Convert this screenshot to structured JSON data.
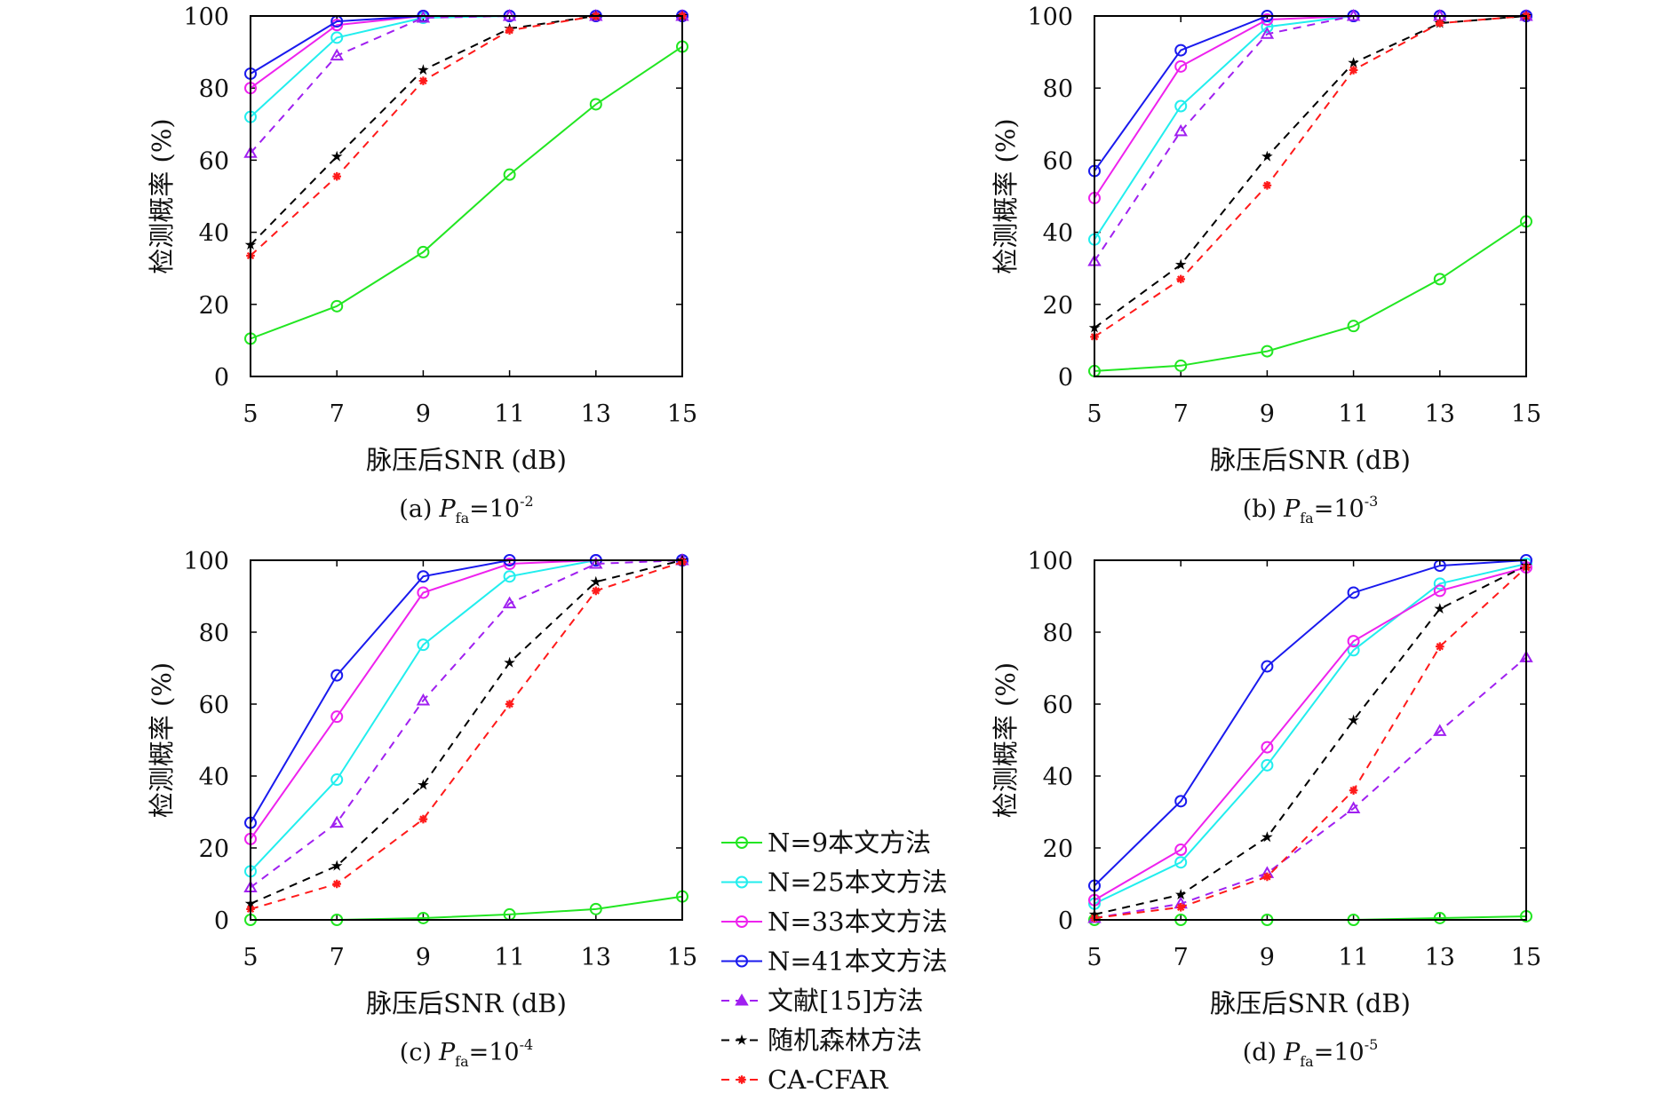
{
  "chart_data": [
    {
      "type": "line",
      "caption": {
        "prefix": "(a)",
        "symbol": "P",
        "subscript": "fa",
        "equals": "=10",
        "exponent": "-2"
      },
      "xlabel": "脉压后SNR (dB)",
      "ylabel": "检测概率 (%)",
      "x": [
        5,
        7,
        9,
        11,
        13,
        15
      ],
      "xticks": [
        "5",
        "7",
        "9",
        "11",
        "13",
        "15"
      ],
      "yticks": [
        "0",
        "20",
        "40",
        "60",
        "80",
        "100"
      ],
      "xlim": [
        5,
        15
      ],
      "ylim": [
        0,
        100
      ],
      "series": [
        {
          "name": "N=9本文方法",
          "values": [
            10.5,
            19.5,
            34.5,
            56,
            75.5,
            91.5
          ]
        },
        {
          "name": "N=25本文方法",
          "values": [
            72,
            94,
            99.5,
            100,
            100,
            100
          ]
        },
        {
          "name": "N=33本文方法",
          "values": [
            80,
            97.5,
            100,
            100,
            100,
            100
          ]
        },
        {
          "name": "N=41本文方法",
          "values": [
            84,
            98.5,
            100,
            100,
            100,
            100
          ]
        },
        {
          "name": "文献[15]方法",
          "values": [
            62,
            89,
            99.5,
            100,
            100,
            100
          ]
        },
        {
          "name": "随机森林方法",
          "values": [
            36.5,
            61,
            85,
            96.5,
            100,
            100
          ]
        },
        {
          "name": "CA-CFAR",
          "values": [
            33.5,
            55.5,
            82,
            96,
            100,
            100
          ]
        }
      ]
    },
    {
      "type": "line",
      "caption": {
        "prefix": "(b)",
        "symbol": "P",
        "subscript": "fa",
        "equals": "=10",
        "exponent": "-3"
      },
      "xlabel": "脉压后SNR (dB)",
      "ylabel": "检测概率 (%)",
      "x": [
        5,
        7,
        9,
        11,
        13,
        15
      ],
      "xticks": [
        "5",
        "7",
        "9",
        "11",
        "13",
        "15"
      ],
      "yticks": [
        "0",
        "20",
        "40",
        "60",
        "80",
        "100"
      ],
      "xlim": [
        5,
        15
      ],
      "ylim": [
        0,
        100
      ],
      "series": [
        {
          "name": "N=9本文方法",
          "values": [
            1.5,
            3,
            7,
            14,
            27,
            43
          ]
        },
        {
          "name": "N=25本文方法",
          "values": [
            38,
            75,
            97,
            100,
            100,
            100
          ]
        },
        {
          "name": "N=33本文方法",
          "values": [
            49.5,
            86,
            99,
            100,
            100,
            100
          ]
        },
        {
          "name": "N=41本文方法",
          "values": [
            57,
            90.5,
            100,
            100,
            100,
            100
          ]
        },
        {
          "name": "文献[15]方法",
          "values": [
            32,
            68,
            95,
            100,
            100,
            100
          ]
        },
        {
          "name": "随机森林方法",
          "values": [
            13.5,
            31,
            61,
            87,
            98,
            100
          ]
        },
        {
          "name": "CA-CFAR",
          "values": [
            11,
            27,
            53,
            85,
            98,
            100
          ]
        }
      ]
    },
    {
      "type": "line",
      "caption": {
        "prefix": "(c)",
        "symbol": "P",
        "subscript": "fa",
        "equals": "=10",
        "exponent": "-4"
      },
      "xlabel": "脉压后SNR (dB)",
      "ylabel": "检测概率 (%)",
      "x": [
        5,
        7,
        9,
        11,
        13,
        15
      ],
      "xticks": [
        "5",
        "7",
        "9",
        "11",
        "13",
        "15"
      ],
      "yticks": [
        "0",
        "20",
        "40",
        "60",
        "80",
        "100"
      ],
      "xlim": [
        5,
        15
      ],
      "ylim": [
        0,
        100
      ],
      "series": [
        {
          "name": "N=9本文方法",
          "values": [
            0,
            0,
            0.5,
            1.5,
            3,
            6.5
          ]
        },
        {
          "name": "N=25本文方法",
          "values": [
            13.5,
            39,
            76.5,
            95.5,
            100,
            100
          ]
        },
        {
          "name": "N=33本文方法",
          "values": [
            22.5,
            56.5,
            91,
            99,
            100,
            100
          ]
        },
        {
          "name": "N=41本文方法",
          "values": [
            27,
            68,
            95.5,
            100,
            100,
            100
          ]
        },
        {
          "name": "文献[15]方法",
          "values": [
            9,
            27,
            61,
            88,
            99,
            100
          ]
        },
        {
          "name": "随机森林方法",
          "values": [
            4.5,
            15,
            37.5,
            71.5,
            94,
            100
          ]
        },
        {
          "name": "CA-CFAR",
          "values": [
            3,
            10,
            28,
            60,
            91.5,
            99.5
          ]
        }
      ]
    },
    {
      "type": "line",
      "caption": {
        "prefix": "(d)",
        "symbol": "P",
        "subscript": "fa",
        "equals": "=10",
        "exponent": "-5"
      },
      "xlabel": "脉压后SNR (dB)",
      "ylabel": "检测概率 (%)",
      "x": [
        5,
        7,
        9,
        11,
        13,
        15
      ],
      "xticks": [
        "5",
        "7",
        "9",
        "11",
        "13",
        "15"
      ],
      "yticks": [
        "0",
        "20",
        "40",
        "60",
        "80",
        "100"
      ],
      "xlim": [
        5,
        15
      ],
      "ylim": [
        0,
        100
      ],
      "series": [
        {
          "name": "N=9本文方法",
          "values": [
            0,
            0,
            0,
            0,
            0.5,
            1
          ]
        },
        {
          "name": "N=25本文方法",
          "values": [
            4.5,
            16,
            43,
            75,
            93.5,
            99
          ]
        },
        {
          "name": "N=33本文方法",
          "values": [
            5.5,
            19.5,
            48,
            77.5,
            91.5,
            98
          ]
        },
        {
          "name": "N=41本文方法",
          "values": [
            9.5,
            33,
            70.5,
            91,
            98.5,
            100
          ]
        },
        {
          "name": "文献[15]方法",
          "values": [
            0.5,
            4.5,
            13,
            31,
            52.5,
            73
          ]
        },
        {
          "name": "随机森林方法",
          "values": [
            1.5,
            7,
            23,
            55.5,
            86.5,
            98.5
          ]
        },
        {
          "name": "CA-CFAR",
          "values": [
            0.5,
            3.5,
            12,
            36,
            76,
            98
          ]
        }
      ]
    }
  ],
  "legend": {
    "placement": "between bottom panels",
    "entries": [
      "N=9本文方法",
      "N=25本文方法",
      "N=33本文方法",
      "N=41本文方法",
      "文献[15]方法",
      "随机森林方法",
      "CA-CFAR"
    ]
  },
  "series_style": [
    {
      "color": "#22e622",
      "dash": "solid",
      "marker": "circle"
    },
    {
      "color": "#22eeee",
      "dash": "solid",
      "marker": "circle"
    },
    {
      "color": "#ee22ee",
      "dash": "solid",
      "marker": "circle"
    },
    {
      "color": "#1a1aee",
      "dash": "solid",
      "marker": "circle"
    },
    {
      "color": "#a020f0",
      "dash": "dashed",
      "marker": "triangle"
    },
    {
      "color": "#000000",
      "dash": "dashed",
      "marker": "star"
    },
    {
      "color": "#ff1a1a",
      "dash": "dashed",
      "marker": "asterisk"
    }
  ]
}
